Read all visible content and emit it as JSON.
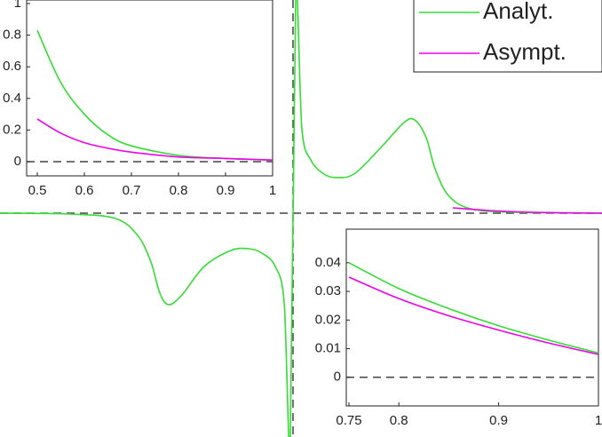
{
  "chart_data": [
    {
      "type": "line",
      "xlim": [
        -3.3,
        3.48
      ],
      "ylim": [
        -2.52,
        2.4
      ],
      "legend": "upper right",
      "series": [
        {
          "name": "Analyt.",
          "color": "#33dd33",
          "x": [
            -3.3,
            -2.5,
            -2.0,
            -1.75,
            -1.6,
            -1.5,
            -1.4,
            -1.25,
            -1.0,
            -0.7,
            -0.5,
            -0.35,
            -0.2,
            -0.1,
            -0.03,
            0.03,
            0.1,
            0.2,
            0.35,
            0.5,
            0.7,
            1.0,
            1.25,
            1.37,
            1.5,
            1.6,
            1.75,
            2.0,
            2.5,
            3.48
          ],
          "values": [
            0,
            -0.01,
            -0.06,
            -0.25,
            -0.55,
            -0.9,
            -1.03,
            -0.92,
            -0.6,
            -0.42,
            -0.4,
            -0.45,
            -0.6,
            -1.0,
            -2.5,
            2.4,
            0.95,
            0.6,
            0.44,
            0.4,
            0.45,
            0.75,
            1.02,
            1.05,
            0.85,
            0.5,
            0.2,
            0.05,
            0.01,
            0
          ]
        },
        {
          "name": "Asympt.",
          "color": "#ee00ee",
          "x": [
            1.8,
            2.2,
            2.7,
            3.48
          ],
          "values": [
            0.06,
            0.03,
            0.01,
            0
          ]
        }
      ]
    },
    {
      "type": "line",
      "xlim": [
        0.5,
        1
      ],
      "ylim": [
        -0.09,
        1
      ],
      "xticks": [
        0.5,
        0.6,
        0.7,
        0.8,
        0.9,
        1
      ],
      "yticks": [
        0,
        0.2,
        0.4,
        0.6,
        0.8,
        1
      ],
      "series": [
        {
          "color": "#33dd33",
          "x": [
            0.5,
            0.55,
            0.6,
            0.65,
            0.7,
            0.8,
            0.9,
            1
          ],
          "values": [
            0.83,
            0.5,
            0.3,
            0.17,
            0.1,
            0.04,
            0.02,
            0.01
          ]
        },
        {
          "color": "#ee00ee",
          "x": [
            0.5,
            0.55,
            0.6,
            0.65,
            0.7,
            0.8,
            0.9,
            1
          ],
          "values": [
            0.27,
            0.18,
            0.12,
            0.085,
            0.06,
            0.03,
            0.02,
            0.01
          ]
        }
      ]
    },
    {
      "type": "line",
      "xlim": [
        0.75,
        1
      ],
      "ylim": [
        -0.01,
        0.0505
      ],
      "xticks": [
        0.75,
        0.8,
        0.9,
        1
      ],
      "yticks": [
        0,
        0.01,
        0.02,
        0.03,
        0.04
      ],
      "series": [
        {
          "color": "#33dd33",
          "x": [
            0.75,
            0.8,
            0.85,
            0.9,
            0.95,
            1
          ],
          "values": [
            0.04,
            0.031,
            0.024,
            0.018,
            0.013,
            0.0085
          ]
        },
        {
          "color": "#ee00ee",
          "x": [
            0.75,
            0.8,
            0.85,
            0.9,
            0.95,
            1
          ],
          "values": [
            0.035,
            0.0275,
            0.0215,
            0.0165,
            0.012,
            0.008
          ]
        }
      ]
    }
  ]
}
